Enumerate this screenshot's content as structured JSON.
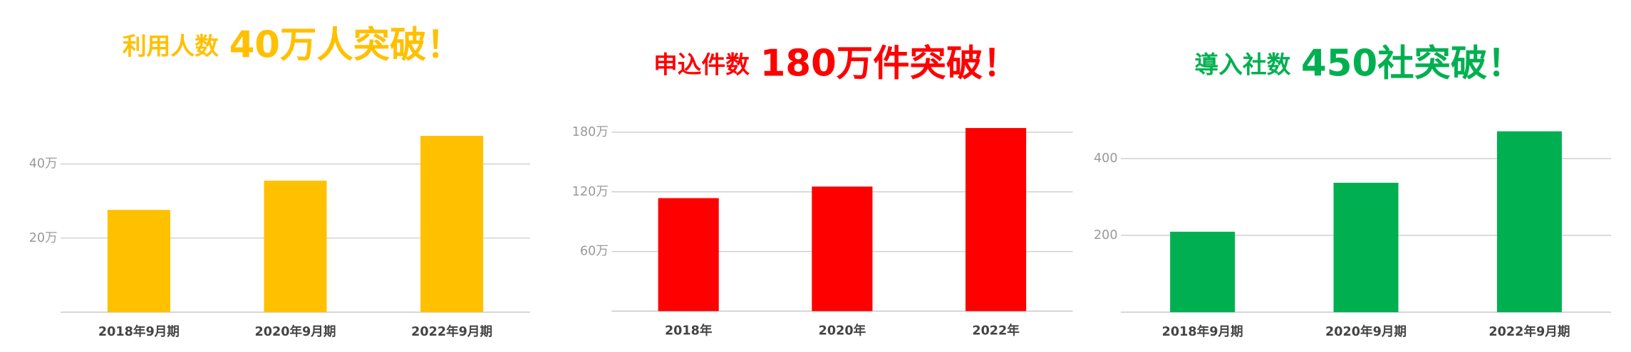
{
  "chart_data": [
    {
      "type": "bar",
      "title": "利用人数",
      "headline": "40万人突破！",
      "color": "#ffc000",
      "categories": [
        "2018年9月期",
        "2020年9月期",
        "2022年9月期"
      ],
      "values": [
        27.6,
        35.5,
        47.6
      ],
      "ylim": [
        0,
        50
      ],
      "yticks": [
        {
          "value": 20,
          "label": "20万"
        },
        {
          "value": 40,
          "label": "40万"
        }
      ],
      "grid": true
    },
    {
      "type": "bar",
      "title": "申込件数",
      "headline": "180万件突破！",
      "color": "#ff0000",
      "categories": [
        "2018年",
        "2020年",
        "2022年"
      ],
      "values": [
        113.7,
        125.3,
        184.2
      ],
      "ylim": [
        0,
        190
      ],
      "yticks": [
        {
          "value": 60,
          "label": "60万"
        },
        {
          "value": 120,
          "label": "120万"
        },
        {
          "value": 180,
          "label": "180万"
        }
      ],
      "grid": true
    },
    {
      "type": "bar",
      "title": "導入社数",
      "headline": "450社突破！",
      "color": "#00b050",
      "categories": [
        "2018年9月期",
        "2020年9月期",
        "2022年9月期"
      ],
      "values": [
        209.5,
        337,
        471
      ],
      "ylim": [
        0,
        500
      ],
      "yticks": [
        200,
        400
      ],
      "grid": true
    }
  ]
}
